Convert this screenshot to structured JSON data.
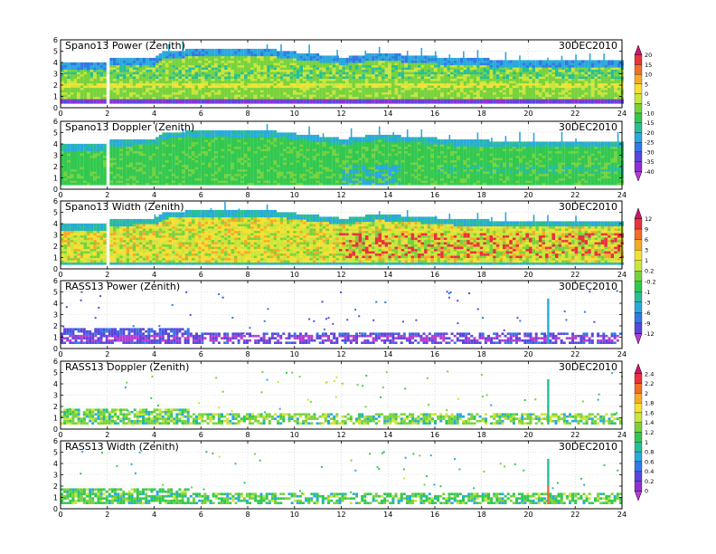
{
  "chart_data": [
    {
      "type": "heatmap",
      "title": "Spano13 Power (Zenith)",
      "date": "30DEC2010",
      "xlim": [
        0,
        24
      ],
      "ylim": [
        0,
        6
      ],
      "x_ticks": [
        "0",
        "2",
        "4",
        "6",
        "8",
        "10",
        "12",
        "14",
        "16",
        "18",
        "20",
        "22",
        "24"
      ],
      "y_ticks": [
        "0",
        "1",
        "2",
        "3",
        "4",
        "5",
        "6"
      ],
      "pattern": "dense",
      "top_profile": [
        [
          0,
          3.8
        ],
        [
          1.9,
          3.8
        ],
        [
          2.0,
          4.2
        ],
        [
          4.0,
          4.3
        ],
        [
          4.3,
          4.8
        ],
        [
          5.5,
          5.0
        ],
        [
          9.0,
          5.0
        ],
        [
          12.0,
          4.3
        ],
        [
          13.5,
          4.7
        ],
        [
          14.0,
          4.6
        ],
        [
          15.0,
          4.5
        ],
        [
          17.0,
          4.2
        ],
        [
          19.5,
          4.1
        ],
        [
          24,
          4.1
        ]
      ],
      "colorbar": "cb1"
    },
    {
      "type": "heatmap",
      "title": "Spano13 Doppler (Zenith)",
      "date": "30DEC2010",
      "xlim": [
        0,
        24
      ],
      "ylim": [
        0,
        6
      ],
      "x_ticks": [
        "0",
        "2",
        "4",
        "6",
        "8",
        "10",
        "12",
        "14",
        "16",
        "18",
        "20",
        "22",
        "24"
      ],
      "y_ticks": [
        "0",
        "1",
        "2",
        "3",
        "4",
        "5",
        "6"
      ],
      "pattern": "dense",
      "top_profile": [
        [
          0,
          3.8
        ],
        [
          1.9,
          3.8
        ],
        [
          2.0,
          4.2
        ],
        [
          4.0,
          4.3
        ],
        [
          4.3,
          4.8
        ],
        [
          5.5,
          5.0
        ],
        [
          9.0,
          5.0
        ],
        [
          12.0,
          4.3
        ],
        [
          13.5,
          4.7
        ],
        [
          14.0,
          4.6
        ],
        [
          15.0,
          4.5
        ],
        [
          17.0,
          4.2
        ],
        [
          19.5,
          4.1
        ],
        [
          24,
          4.1
        ]
      ],
      "colorbar": "cb1"
    },
    {
      "type": "heatmap",
      "title": "Spano13 Width (Zenith)",
      "date": "30DEC2010",
      "xlim": [
        0,
        24
      ],
      "ylim": [
        0,
        6
      ],
      "x_ticks": [
        "0",
        "2",
        "4",
        "6",
        "8",
        "10",
        "12",
        "14",
        "16",
        "18",
        "20",
        "22",
        "24"
      ],
      "y_ticks": [
        "0",
        "1",
        "2",
        "3",
        "4",
        "5",
        "6"
      ],
      "pattern": "dense",
      "top_profile": [
        [
          0,
          3.8
        ],
        [
          1.9,
          3.8
        ],
        [
          2.0,
          4.2
        ],
        [
          4.0,
          4.3
        ],
        [
          4.3,
          4.8
        ],
        [
          5.5,
          5.0
        ],
        [
          9.0,
          5.0
        ],
        [
          12.0,
          4.3
        ],
        [
          13.5,
          4.7
        ],
        [
          14.0,
          4.6
        ],
        [
          15.0,
          4.5
        ],
        [
          17.0,
          4.2
        ],
        [
          19.5,
          4.1
        ],
        [
          24,
          4.1
        ]
      ],
      "colorbar": "cb2"
    },
    {
      "type": "heatmap",
      "title": "RASS13 Power (Zenith)",
      "date": "30DEC2010",
      "xlim": [
        0,
        24
      ],
      "ylim": [
        0,
        6
      ],
      "x_ticks": [
        "0",
        "2",
        "4",
        "6",
        "8",
        "10",
        "12",
        "14",
        "16",
        "18",
        "20",
        "22",
        "24"
      ],
      "y_ticks": [
        "0",
        "1",
        "2",
        "3",
        "4",
        "5",
        "6"
      ],
      "pattern": "sparse",
      "colorbar": "cb2"
    },
    {
      "type": "heatmap",
      "title": "RASS13 Doppler (Zenith)",
      "date": "30DEC2010",
      "xlim": [
        0,
        24
      ],
      "ylim": [
        0,
        6
      ],
      "x_ticks": [
        "0",
        "2",
        "4",
        "6",
        "8",
        "10",
        "12",
        "14",
        "16",
        "18",
        "20",
        "22",
        "24"
      ],
      "y_ticks": [
        "0",
        "1",
        "2",
        "3",
        "4",
        "5",
        "6"
      ],
      "pattern": "sparse",
      "colorbar": "cb3"
    },
    {
      "type": "heatmap",
      "title": "RASS13 Width (Zenith)",
      "date": "30DEC2010",
      "xlim": [
        0,
        24
      ],
      "ylim": [
        0,
        6
      ],
      "x_ticks": [
        "0",
        "2",
        "4",
        "6",
        "8",
        "10",
        "12",
        "14",
        "16",
        "18",
        "20",
        "22",
        "24"
      ],
      "y_ticks": [
        "0",
        "1",
        "2",
        "3",
        "4",
        "5",
        "6"
      ],
      "pattern": "sparse",
      "colorbar": "cb3"
    }
  ],
  "colorbars": {
    "cb1": {
      "labels": [
        "20",
        "15",
        "10",
        "5",
        "0",
        "-5",
        "-10",
        "-15",
        "-20",
        "-25",
        "-30",
        "-35",
        "-40"
      ],
      "colors": [
        "#d2146e",
        "#e8323c",
        "#f06e28",
        "#f5aa28",
        "#f5e132",
        "#c8e63c",
        "#78d23c",
        "#32c850",
        "#28be96",
        "#28aadc",
        "#3278e6",
        "#5a46dc",
        "#8c32d2",
        "#b43cd2"
      ]
    },
    "cb2": {
      "labels": [
        "12",
        "9",
        "6",
        "3",
        "1",
        "0.2",
        "-0.2",
        "-1",
        "-3",
        "-6",
        "-9",
        "-12"
      ],
      "colors": [
        "#d2146e",
        "#e8323c",
        "#f06e28",
        "#f5aa28",
        "#f5e132",
        "#c8e63c",
        "#78d23c",
        "#32c850",
        "#28be96",
        "#28aadc",
        "#3278e6",
        "#5a46dc",
        "#b43cd2"
      ]
    },
    "cb3": {
      "labels": [
        "2.4",
        "2.2",
        "2",
        "1.8",
        "1.6",
        "1.4",
        "1.2",
        "1",
        "0.8",
        "0.6",
        "0.4",
        "0.2",
        "0"
      ],
      "colors": [
        "#d2146e",
        "#e8323c",
        "#f06e28",
        "#f5aa28",
        "#f5e132",
        "#c8e63c",
        "#78d23c",
        "#32c850",
        "#28be96",
        "#28aadc",
        "#3278e6",
        "#5a46dc",
        "#8c32d2",
        "#b43cd2"
      ]
    }
  }
}
